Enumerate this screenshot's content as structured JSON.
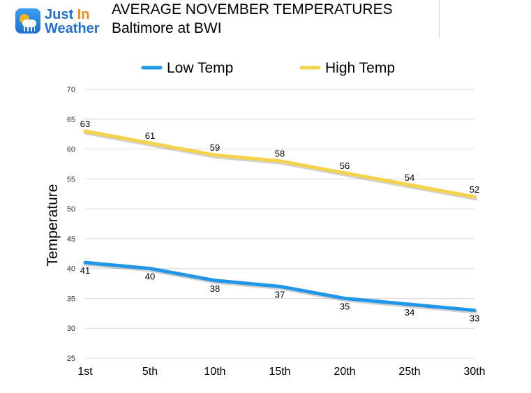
{
  "logo": {
    "line1_a": "Just",
    "line1_b": " In",
    "line2": "Weather",
    "icon": "weather-cloud-sun-icon"
  },
  "header": {
    "title": "AVERAGE NOVEMBER TEMPERATURES",
    "subtitle": "Baltimore at BWI"
  },
  "chart_data": {
    "type": "line",
    "title": "AVERAGE NOVEMBER TEMPERATURES",
    "subtitle": "Baltimore at BWI",
    "xlabel": "",
    "ylabel": "Temperature",
    "categories": [
      "1st",
      "5th",
      "10th",
      "15th",
      "20th",
      "25th",
      "30th"
    ],
    "ylim": [
      25,
      70
    ],
    "yticks": [
      25,
      30,
      35,
      40,
      45,
      50,
      55,
      60,
      65,
      70
    ],
    "grid": true,
    "legend": "top",
    "series": [
      {
        "name": "Low Temp",
        "color": "#2196e8",
        "values": [
          41,
          40,
          38,
          37,
          35,
          34,
          33
        ]
      },
      {
        "name": "High Temp",
        "color": "#f3d24c",
        "values": [
          63,
          61,
          59,
          58,
          56,
          54,
          52
        ]
      }
    ]
  }
}
